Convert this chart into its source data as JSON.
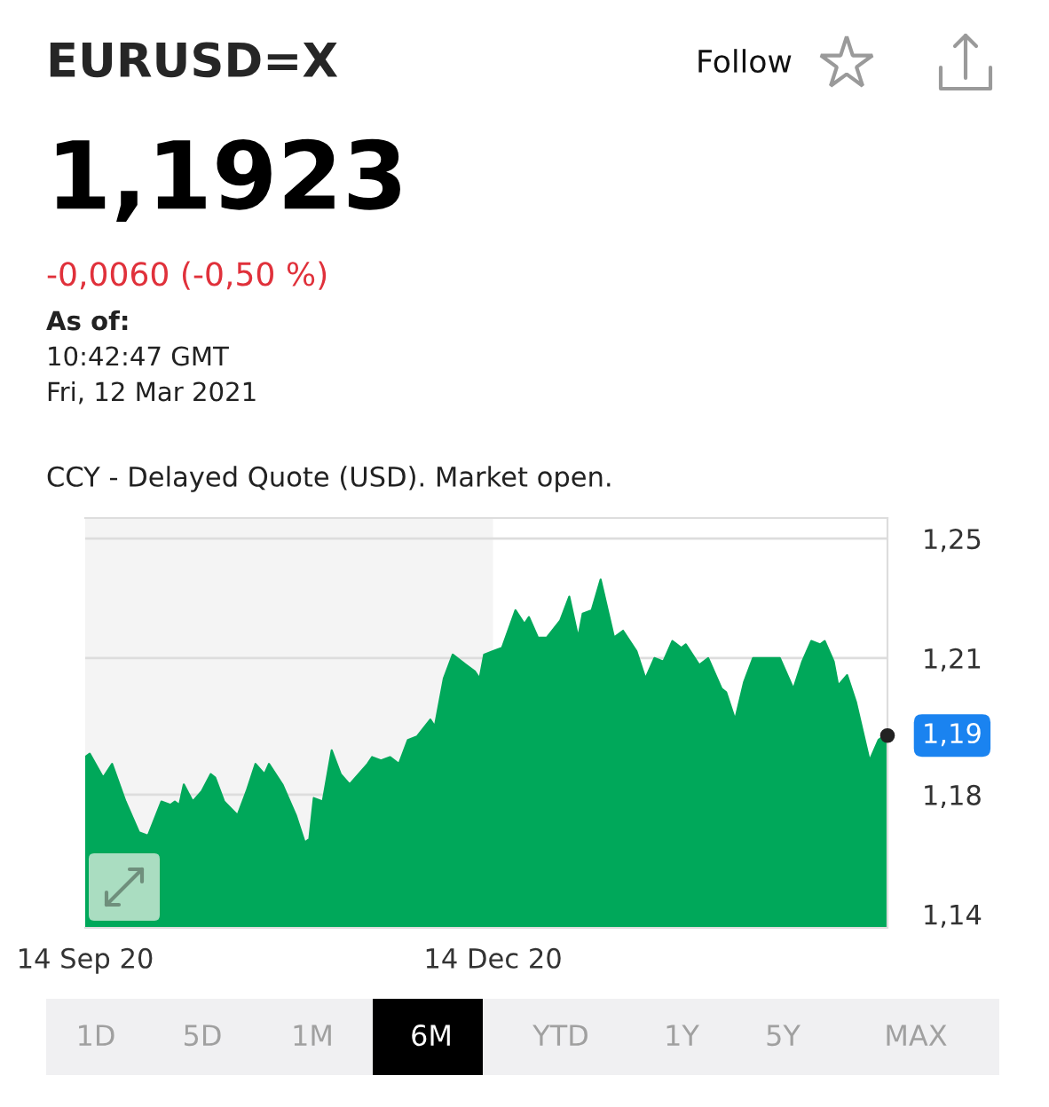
{
  "chart_data": {
    "type": "area",
    "title": "EURUSD=X",
    "subtitle": "CCY - Delayed Quote (USD). Market open.",
    "x": [
      "2020-09-14",
      "2020-09-15",
      "2020-09-18",
      "2020-09-20",
      "2020-09-23",
      "2020-09-26",
      "2020-09-28",
      "2020-10-01",
      "2020-10-03",
      "2020-10-04",
      "2020-10-05",
      "2020-10-06",
      "2020-10-08",
      "2020-10-10",
      "2020-10-12",
      "2020-10-13",
      "2020-10-15",
      "2020-10-18",
      "2020-10-20",
      "2020-10-22",
      "2020-10-24",
      "2020-10-25",
      "2020-10-28",
      "2020-10-31",
      "2020-11-02",
      "2020-11-03",
      "2020-11-04",
      "2020-11-06",
      "2020-11-08",
      "2020-11-10",
      "2020-11-12",
      "2020-11-16",
      "2020-11-17",
      "2020-11-19",
      "2020-11-21",
      "2020-11-23",
      "2020-11-25",
      "2020-11-27",
      "2020-11-30",
      "2020-12-01",
      "2020-12-03",
      "2020-12-05",
      "2020-12-08",
      "2020-12-10",
      "2020-12-11",
      "2020-12-12",
      "2020-12-14",
      "2020-12-16",
      "2020-12-19",
      "2020-12-21",
      "2020-12-22",
      "2020-12-24",
      "2020-12-26",
      "2020-12-29",
      "2020-12-31",
      "2021-01-02",
      "2021-01-03",
      "2021-01-05",
      "2021-01-07",
      "2021-01-10",
      "2021-01-12",
      "2021-01-15",
      "2021-01-17",
      "2021-01-19",
      "2021-01-21",
      "2021-01-23",
      "2021-01-25",
      "2021-01-26",
      "2021-01-29",
      "2021-01-31",
      "2021-02-03",
      "2021-02-04",
      "2021-02-06",
      "2021-02-08",
      "2021-02-10",
      "2021-02-13",
      "2021-02-16",
      "2021-02-19",
      "2021-02-21",
      "2021-02-23",
      "2021-02-25",
      "2021-02-26",
      "2021-02-28",
      "2021-03-01",
      "2021-03-03",
      "2021-03-05",
      "2021-03-08",
      "2021-03-10",
      "2021-03-12"
    ],
    "series": [
      {
        "color": "#00a85a",
        "values": [
          1.186,
          1.187,
          1.18,
          1.184,
          1.173,
          1.164,
          1.163,
          1.173,
          1.172,
          1.173,
          1.172,
          1.178,
          1.173,
          1.176,
          1.181,
          1.18,
          1.173,
          1.169,
          1.176,
          1.184,
          1.181,
          1.184,
          1.178,
          1.169,
          1.161,
          1.162,
          1.174,
          1.173,
          1.188,
          1.181,
          1.178,
          1.184,
          1.186,
          1.185,
          1.186,
          1.184,
          1.191,
          1.192,
          1.197,
          1.195,
          1.209,
          1.216,
          1.213,
          1.211,
          1.209,
          1.216,
          1.217,
          1.218,
          1.229,
          1.225,
          1.227,
          1.221,
          1.221,
          1.226,
          1.233,
          1.221,
          1.228,
          1.229,
          1.238,
          1.221,
          1.223,
          1.217,
          1.209,
          1.215,
          1.214,
          1.22,
          1.218,
          1.219,
          1.213,
          1.215,
          1.206,
          1.205,
          1.197,
          1.208,
          1.215,
          1.215,
          1.215,
          1.206,
          1.214,
          1.22,
          1.219,
          1.22,
          1.214,
          1.207,
          1.21,
          1.202,
          1.185,
          1.191,
          1.193
        ]
      }
    ],
    "xlim": [
      "2020-09-14",
      "2021-03-12"
    ],
    "xticks": [
      {
        "value": "2020-09-14",
        "label": "14 Sep 20"
      },
      {
        "value": "2020-12-14",
        "label": "14 Dec 20"
      }
    ],
    "ylim": [
      1.136,
      1.256
    ],
    "yticks": [
      {
        "value": 1.25,
        "label": "1,25"
      },
      {
        "value": 1.215,
        "label": "1,21"
      },
      {
        "value": 1.175,
        "label": "1,18"
      },
      {
        "value": 1.14,
        "label": "1,14"
      }
    ],
    "grid": "y",
    "bands": [
      {
        "axis": "x",
        "from": "2020-09-14",
        "to": "2020-12-14",
        "color": "#f4f4f4"
      }
    ],
    "annotations": [
      "1,1923",
      "-0,0060 (-0,50 %)",
      "As of:",
      "10:42:47 GMT",
      "Fri, 12 Mar 2021",
      "Follow",
      "1D",
      "5D",
      "1M",
      "6M",
      "YTD",
      "1Y",
      "5Y",
      "MAX",
      {
        "text": "1,19",
        "x": "2021-03-12",
        "y": 1.1923
      }
    ]
  }
}
